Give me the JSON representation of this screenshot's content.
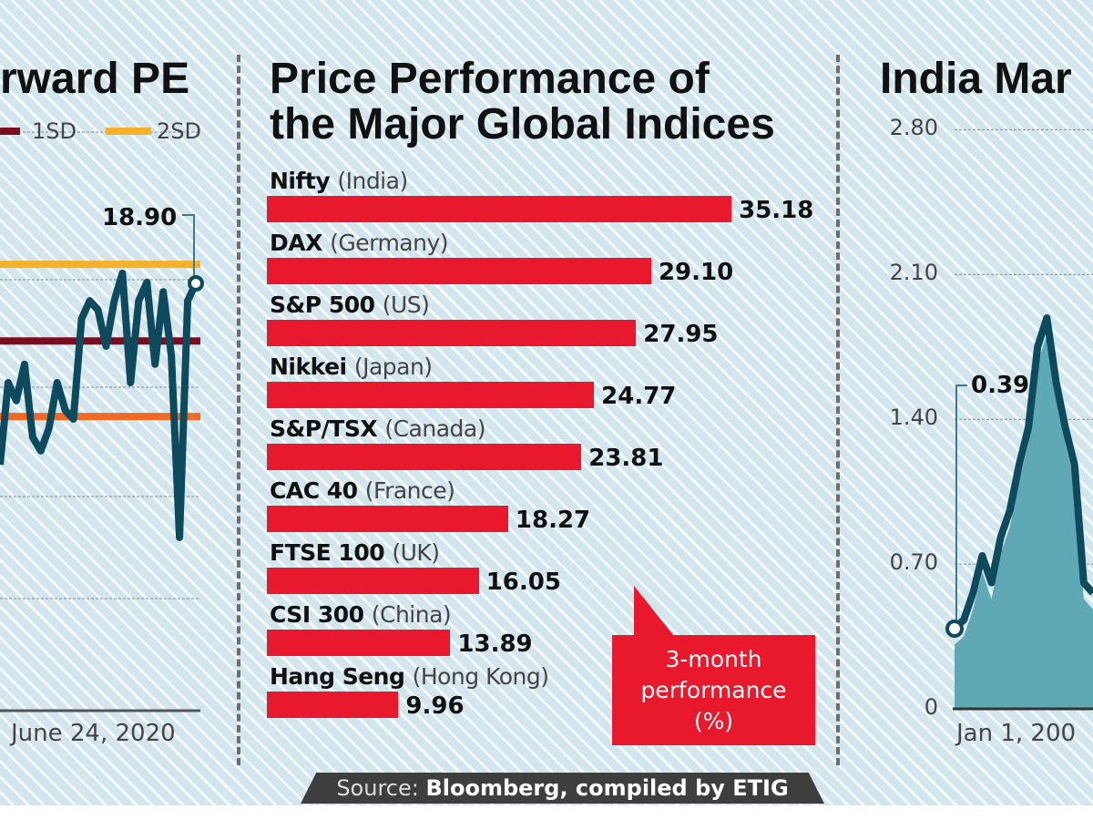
{
  "colors": {
    "bar": "#e8192c",
    "line": "#0d4a5e",
    "area": "#5fa8b5",
    "sd1": "#7a0d1f",
    "sd2": "#f5b12a",
    "mean_band": "#f06a24",
    "background": "#d3e6ee"
  },
  "source": {
    "prefix": "Source: ",
    "text": "Bloomberg, compiled by ETIG"
  },
  "chart_data": [
    {
      "type": "line",
      "title": "rward PE",
      "legend": [
        "1SD",
        "2SD"
      ],
      "legend_placement": "top",
      "x_end_label": "June 24, 2020",
      "annotation": "18.90",
      "values": [
        15.47,
        17.02,
        16.68,
        17.37,
        15.99,
        15.73,
        16.16,
        17.02,
        16.5,
        16.33,
        18.23,
        18.57,
        18.4,
        17.71,
        18.57,
        19.09,
        17.02,
        18.57,
        18.92,
        17.37,
        18.74,
        17.54,
        14.09,
        18.57,
        18.9
      ],
      "reference_lines": {
        "2SD": 19.26,
        "1SD": 17.81,
        "lower": 16.38
      },
      "grid": true
    },
    {
      "type": "bar",
      "orientation": "horizontal",
      "title": "Price Performance of the Major Global Indices",
      "callout": {
        "line1": "3-month",
        "line2": "performance",
        "line3": "(%)"
      },
      "categories": [
        {
          "name": "Nifty",
          "country": "(India)"
        },
        {
          "name": "DAX",
          "country": "(Germany)"
        },
        {
          "name": "S&P 500",
          "country": "(US)"
        },
        {
          "name": "Nikkei",
          "country": "(Japan)"
        },
        {
          "name": "S&P/TSX",
          "country": "(Canada)"
        },
        {
          "name": "CAC 40",
          "country": "(France)"
        },
        {
          "name": "FTSE 100",
          "country": "(UK)"
        },
        {
          "name": "CSI 300",
          "country": "(China)"
        },
        {
          "name": "Hang Seng",
          "country": "(Hong Kong)"
        }
      ],
      "values": [
        35.18,
        29.1,
        27.95,
        24.77,
        23.81,
        18.27,
        16.05,
        13.89,
        9.96
      ],
      "value_labels": [
        "35.18",
        "29.10",
        "27.95",
        "24.77",
        "23.81",
        "18.27",
        "16.05",
        "13.89",
        "9.96"
      ]
    },
    {
      "type": "area",
      "title": "India Mar",
      "yticks": [
        "2.80",
        "2.10",
        "1.40",
        "0.70",
        "0"
      ],
      "ylim": [
        0,
        2.8
      ],
      "x_start_label": "Jan 1, 200",
      "annotation": "0.39",
      "grid": true,
      "values": [
        0.39,
        0.43,
        0.56,
        0.74,
        0.61,
        0.83,
        0.96,
        1.18,
        1.36,
        1.75,
        1.89,
        1.58,
        1.36,
        1.18,
        0.61,
        0.56
      ]
    }
  ]
}
